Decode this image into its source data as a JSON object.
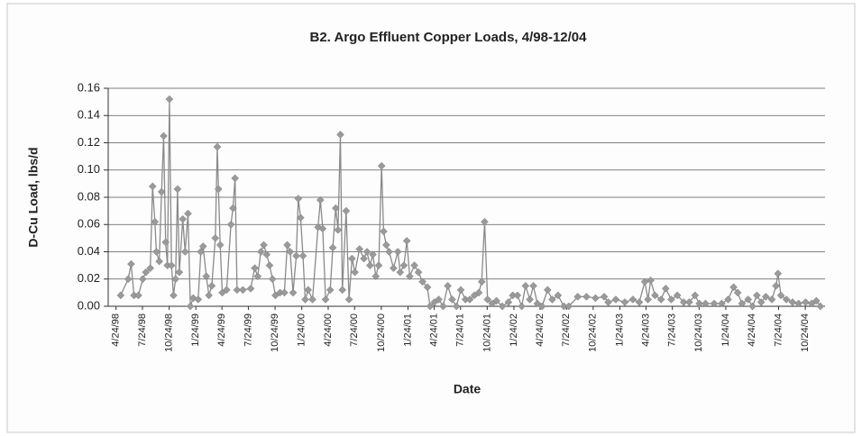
{
  "chart_data": {
    "type": "line",
    "title": "B2.  Argo Effluent Copper Loads, 4/98-12/04",
    "xlabel": "Date",
    "ylabel": "D-Cu Load, lbs/d",
    "color": "#9a9a9a",
    "line_color": "#8a8a8a",
    "grid": true,
    "ylim": [
      0,
      0.16
    ],
    "yticks": [
      {
        "value": 0,
        "label": "0.00"
      },
      0.02,
      0.04,
      0.06,
      0.08,
      {
        "value": 0.1,
        "label": "0.10"
      },
      0.12,
      0.14,
      0.16
    ],
    "xlim": [
      "1998-03-28",
      "2004-12-31"
    ],
    "xticks": [
      {
        "value": "1998-04-24",
        "label": "4/24/98"
      },
      {
        "value": "1998-07-24",
        "label": "7/24/98"
      },
      {
        "value": "1998-10-24",
        "label": "10/24/98"
      },
      {
        "value": "1999-01-24",
        "label": "1/24/99"
      },
      {
        "value": "1999-04-24",
        "label": "4/24/99"
      },
      {
        "value": "1999-07-24",
        "label": "7/24/99"
      },
      {
        "value": "1999-10-24",
        "label": "10/24/99"
      },
      {
        "value": "2000-01-24",
        "label": "1/24/00"
      },
      {
        "value": "2000-04-24",
        "label": "4/24/00"
      },
      {
        "value": "2000-07-24",
        "label": "7/24/00"
      },
      {
        "value": "2000-10-24",
        "label": "10/24/00"
      },
      {
        "value": "2001-01-24",
        "label": "1/24/01"
      },
      {
        "value": "2001-04-24",
        "label": "4/24/01"
      },
      {
        "value": "2001-07-24",
        "label": "7/24/01"
      },
      {
        "value": "2001-10-24",
        "label": "10/24/01"
      },
      {
        "value": "2002-01-24",
        "label": "1/24/02"
      },
      {
        "value": "2002-04-24",
        "label": "4/24/02"
      },
      {
        "value": "2002-07-24",
        "label": "7/24/02"
      },
      {
        "value": "2002-10-24",
        "label": "10/24/02"
      },
      {
        "value": "2003-01-24",
        "label": "1/24/03"
      },
      {
        "value": "2003-04-24",
        "label": "4/24/03"
      },
      {
        "value": "2003-07-24",
        "label": "7/24/03"
      },
      {
        "value": "2003-10-24",
        "label": "10/24/03"
      },
      {
        "value": "2004-01-24",
        "label": "1/24/04"
      },
      {
        "value": "2004-04-24",
        "label": "4/24/04"
      },
      {
        "value": "2004-07-24",
        "label": "7/24/04"
      },
      {
        "value": "2004-10-24",
        "label": "10/24/04"
      }
    ],
    "x": [
      "1998-05-10",
      "1998-06-05",
      "1998-06-15",
      "1998-06-25",
      "1998-07-10",
      "1998-07-25",
      "1998-08-05",
      "1998-08-20",
      "1998-08-28",
      "1998-09-05",
      "1998-09-10",
      "1998-09-20",
      "1998-09-28",
      "1998-10-05",
      "1998-10-12",
      "1998-10-18",
      "1998-10-25",
      "1998-11-01",
      "1998-11-08",
      "1998-11-15",
      "1998-11-22",
      "1998-11-28",
      "1998-12-10",
      "1998-12-18",
      "1998-12-28",
      "1999-01-05",
      "1999-01-15",
      "1999-02-01",
      "1999-02-10",
      "1999-02-18",
      "1999-03-01",
      "1999-03-10",
      "1999-03-20",
      "1999-04-01",
      "1999-04-08",
      "1999-04-12",
      "1999-04-18",
      "1999-04-25",
      "1999-05-10",
      "1999-05-25",
      "1999-06-01",
      "1999-06-08",
      "1999-06-15",
      "1999-07-05",
      "1999-08-01",
      "1999-08-15",
      "1999-08-25",
      "1999-09-05",
      "1999-09-15",
      "1999-09-25",
      "1999-10-05",
      "1999-10-15",
      "1999-10-25",
      "1999-11-10",
      "1999-11-25",
      "1999-12-05",
      "1999-12-15",
      "1999-12-25",
      "2000-01-05",
      "2000-01-12",
      "2000-01-20",
      "2000-01-28",
      "2000-02-05",
      "2000-02-15",
      "2000-03-01",
      "2000-03-20",
      "2000-03-28",
      "2000-04-05",
      "2000-04-15",
      "2000-05-01",
      "2000-05-10",
      "2000-05-20",
      "2000-05-28",
      "2000-06-05",
      "2000-06-12",
      "2000-06-25",
      "2000-07-05",
      "2000-07-15",
      "2000-07-25",
      "2000-08-10",
      "2000-08-25",
      "2000-09-05",
      "2000-09-15",
      "2000-09-25",
      "2000-10-05",
      "2000-10-15",
      "2000-10-25",
      "2000-11-01",
      "2000-11-10",
      "2000-11-20",
      "2000-12-05",
      "2000-12-20",
      "2000-12-28",
      "2001-01-10",
      "2001-01-20",
      "2001-01-30",
      "2001-02-15",
      "2001-03-01",
      "2001-03-15",
      "2001-04-01",
      "2001-04-10",
      "2001-04-25",
      "2001-05-10",
      "2001-05-25",
      "2001-06-10",
      "2001-06-25",
      "2001-07-10",
      "2001-07-25",
      "2001-08-10",
      "2001-08-25",
      "2001-09-10",
      "2001-09-25",
      "2001-10-05",
      "2001-10-15",
      "2001-10-25",
      "2001-11-10",
      "2001-11-25",
      "2001-12-15",
      "2002-01-05",
      "2002-01-20",
      "2002-02-05",
      "2002-02-20",
      "2002-03-05",
      "2002-03-20",
      "2002-04-01",
      "2002-04-15",
      "2002-05-01",
      "2002-05-20",
      "2002-06-05",
      "2002-06-25",
      "2002-07-15",
      "2002-08-01",
      "2002-09-01",
      "2002-10-01",
      "2002-11-01",
      "2002-12-01",
      "2002-12-15",
      "2003-01-10",
      "2003-02-10",
      "2003-03-10",
      "2003-04-01",
      "2003-04-20",
      "2003-05-01",
      "2003-05-10",
      "2003-05-25",
      "2003-06-15",
      "2003-07-01",
      "2003-07-20",
      "2003-08-10",
      "2003-09-01",
      "2003-09-20",
      "2003-10-10",
      "2003-10-25",
      "2003-11-15",
      "2003-12-15",
      "2004-01-10",
      "2004-02-01",
      "2004-02-20",
      "2004-03-05",
      "2004-03-20",
      "2004-04-10",
      "2004-04-25",
      "2004-05-10",
      "2004-05-25",
      "2004-06-10",
      "2004-07-01",
      "2004-07-15",
      "2004-07-22",
      "2004-08-01",
      "2004-08-20",
      "2004-09-10",
      "2004-10-01",
      "2004-10-25",
      "2004-11-15",
      "2004-12-01",
      "2004-12-15"
    ],
    "values": [
      0.008,
      0.02,
      0.031,
      0.008,
      0.008,
      0.02,
      0.025,
      0.028,
      0.088,
      0.062,
      0.04,
      0.033,
      0.084,
      0.125,
      0.047,
      0.03,
      0.152,
      0.03,
      0.008,
      0.02,
      0.086,
      0.025,
      0.064,
      0.04,
      0.068,
      0,
      0.006,
      0.005,
      0.04,
      0.044,
      0.022,
      0.008,
      0.015,
      0.05,
      0.117,
      0.086,
      0.045,
      0.01,
      0.012,
      0.06,
      0.072,
      0.094,
      0.012,
      0.012,
      0.013,
      0.028,
      0.022,
      0.04,
      0.045,
      0.038,
      0.03,
      0.02,
      0.008,
      0.01,
      0.01,
      0.045,
      0.04,
      0.01,
      0.037,
      0.079,
      0.065,
      0.037,
      0.005,
      0.012,
      0.005,
      0.058,
      0.078,
      0.057,
      0.005,
      0.012,
      0.043,
      0.072,
      0.056,
      0.126,
      0.012,
      0.07,
      0.005,
      0.035,
      0.025,
      0.042,
      0.035,
      0.04,
      0.03,
      0.038,
      0.022,
      0.03,
      0.103,
      0.055,
      0.045,
      0.04,
      0.028,
      0.04,
      0.025,
      0.03,
      0.048,
      0.022,
      0.03,
      0.025,
      0.018,
      0.014,
      0,
      0.003,
      0.005,
      0,
      0.015,
      0.005,
      0,
      0.012,
      0.005,
      0.005,
      0.008,
      0.01,
      0.018,
      0.062,
      0.005,
      0.002,
      0.004,
      0,
      0.003,
      0.008,
      0.008,
      0,
      0.015,
      0.005,
      0.015,
      0.002,
      0,
      0.012,
      0.005,
      0.008,
      0,
      0,
      0.007,
      0.007,
      0.006,
      0.007,
      0.003,
      0.005,
      0.003,
      0.005,
      0.003,
      0.018,
      0.005,
      0.019,
      0.008,
      0.005,
      0.013,
      0.005,
      0.008,
      0.003,
      0.003,
      0.008,
      0.002,
      0.002,
      0.002,
      0.002,
      0.005,
      0.014,
      0.01,
      0.002,
      0.005,
      0,
      0.008,
      0.003,
      0.007,
      0.005,
      0.015,
      0.024,
      0.008,
      0.005,
      0.003,
      0.002,
      0.003,
      0.002,
      0.004,
      0
    ]
  }
}
